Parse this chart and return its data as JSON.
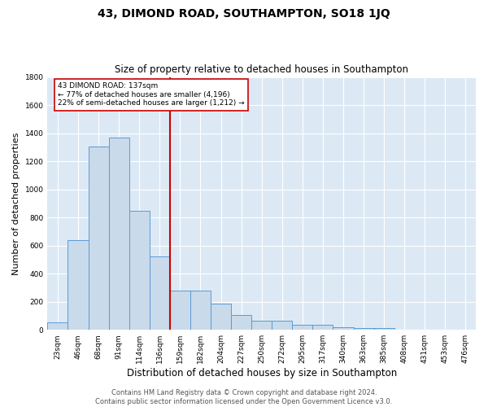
{
  "title": "43, DIMOND ROAD, SOUTHAMPTON, SO18 1JQ",
  "subtitle": "Size of property relative to detached houses in Southampton",
  "xlabel": "Distribution of detached houses by size in Southampton",
  "ylabel": "Number of detached properties",
  "bar_labels": [
    "23sqm",
    "46sqm",
    "68sqm",
    "91sqm",
    "114sqm",
    "136sqm",
    "159sqm",
    "182sqm",
    "204sqm",
    "227sqm",
    "250sqm",
    "272sqm",
    "295sqm",
    "317sqm",
    "340sqm",
    "363sqm",
    "385sqm",
    "408sqm",
    "431sqm",
    "453sqm",
    "476sqm"
  ],
  "bar_values": [
    55,
    640,
    1305,
    1370,
    850,
    525,
    278,
    278,
    185,
    105,
    65,
    65,
    35,
    35,
    20,
    10,
    15,
    0,
    0,
    0,
    0
  ],
  "bar_color": "#c9daea",
  "bar_edge_color": "#5b9bd5",
  "vline_x": 5.5,
  "vline_color": "#cc0000",
  "annotation_text": "43 DIMOND ROAD: 137sqm\n← 77% of detached houses are smaller (4,196)\n22% of semi-detached houses are larger (1,212) →",
  "annotation_box_color": "#ffffff",
  "annotation_box_edge": "#cc0000",
  "ylim": [
    0,
    1800
  ],
  "yticks": [
    0,
    200,
    400,
    600,
    800,
    1000,
    1200,
    1400,
    1600,
    1800
  ],
  "background_color": "#dce9f5",
  "grid_color": "#ffffff",
  "fig_background": "#ffffff",
  "footer_line1": "Contains HM Land Registry data © Crown copyright and database right 2024.",
  "footer_line2": "Contains public sector information licensed under the Open Government Licence v3.0.",
  "title_fontsize": 10,
  "subtitle_fontsize": 8.5,
  "xlabel_fontsize": 8.5,
  "ylabel_fontsize": 8,
  "tick_fontsize": 6.5,
  "footer_fontsize": 6
}
